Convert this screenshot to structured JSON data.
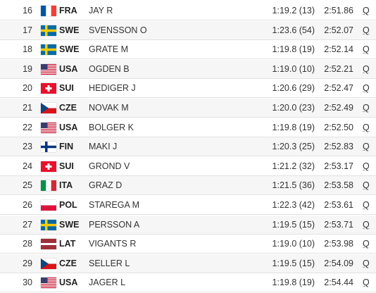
{
  "table": {
    "rows": [
      [
        "16",
        "FRA",
        "JAY R",
        "1:19.2 (13)",
        "2:51.86",
        "Q"
      ],
      [
        "17",
        "SWE",
        "SVENSSON O",
        "1:23.6 (54)",
        "2:52.07",
        "Q"
      ],
      [
        "18",
        "SWE",
        "GRATE M",
        "1:19.8 (19)",
        "2:52.14",
        "Q"
      ],
      [
        "19",
        "USA",
        "OGDEN B",
        "1:19.0 (10)",
        "2:52.21",
        "Q"
      ],
      [
        "20",
        "SUI",
        "HEDIGER J",
        "1:20.6 (29)",
        "2:52.47",
        "Q"
      ],
      [
        "21",
        "CZE",
        "NOVAK M",
        "1:20.0 (23)",
        "2:52.49",
        "Q"
      ],
      [
        "22",
        "USA",
        "BOLGER K",
        "1:19.8 (19)",
        "2:52.50",
        "Q"
      ],
      [
        "23",
        "FIN",
        "MAKI J",
        "1:20.3 (25)",
        "2:52.83",
        "Q"
      ],
      [
        "24",
        "SUI",
        "GROND V",
        "1:21.2 (32)",
        "2:53.17",
        "Q"
      ],
      [
        "25",
        "ITA",
        "GRAZ D",
        "1:21.5 (36)",
        "2:53.58",
        "Q"
      ],
      [
        "26",
        "POL",
        "STAREGA M",
        "1:22.3 (42)",
        "2:53.61",
        "Q"
      ],
      [
        "27",
        "SWE",
        "PERSSON A",
        "1:19.5 (15)",
        "2:53.71",
        "Q"
      ],
      [
        "28",
        "LAT",
        "VIGANTS R",
        "1:19.0 (10)",
        "2:53.98",
        "Q"
      ],
      [
        "29",
        "CZE",
        "SELLER L",
        "1:19.5 (15)",
        "2:54.09",
        "Q"
      ],
      [
        "30",
        "USA",
        "JAGER L",
        "1:19.8 (19)",
        "2:54.44",
        "Q"
      ]
    ]
  }
}
